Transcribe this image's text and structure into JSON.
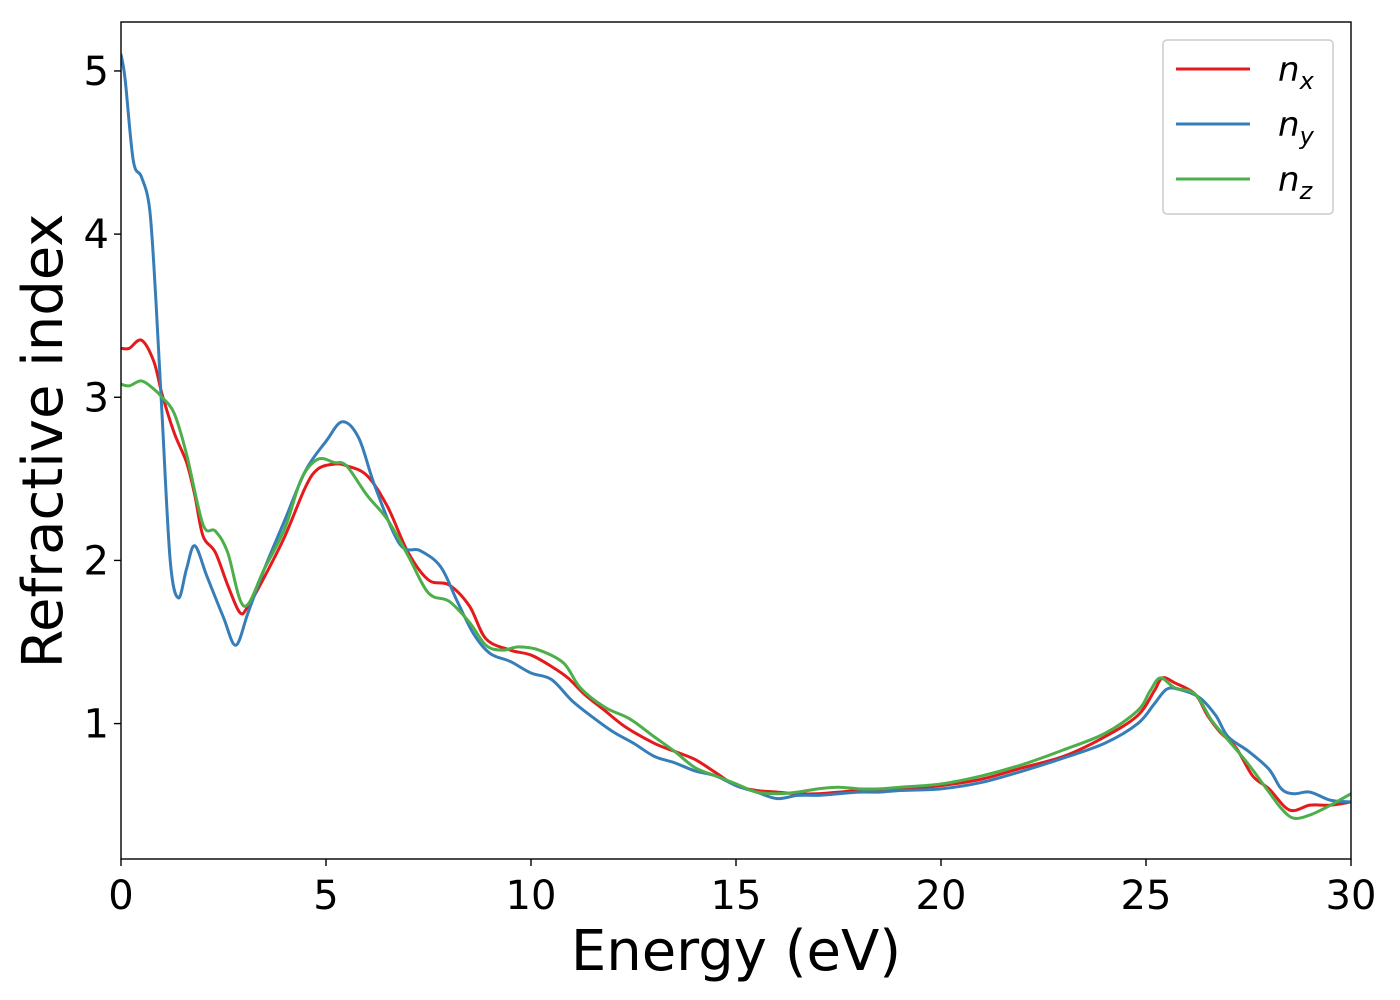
{
  "chart_data": {
    "type": "line",
    "xlabel": "Energy (eV)",
    "ylabel": "Refractive index",
    "xlim": [
      0,
      30
    ],
    "ylim": [
      0.17,
      5.3
    ],
    "xticks": [
      0,
      5,
      10,
      15,
      20,
      25,
      30
    ],
    "xtick_labels": [
      "0",
      "5",
      "10",
      "15",
      "20",
      "25",
      "30"
    ],
    "yticks": [
      1,
      2,
      3,
      4,
      5
    ],
    "ytick_labels": [
      "1",
      "2",
      "3",
      "4",
      "5"
    ],
    "grid": false,
    "legend_position": "top-right",
    "series": [
      {
        "name": "n",
        "subscript": "x",
        "color": "#e41a1c",
        "points": [
          [
            0,
            3.3
          ],
          [
            0.2,
            3.3
          ],
          [
            0.5,
            3.35
          ],
          [
            0.8,
            3.22
          ],
          [
            1.0,
            3.02
          ],
          [
            1.3,
            2.78
          ],
          [
            1.6,
            2.6
          ],
          [
            1.8,
            2.4
          ],
          [
            2.0,
            2.15
          ],
          [
            2.3,
            2.05
          ],
          [
            2.6,
            1.85
          ],
          [
            2.9,
            1.68
          ],
          [
            3.1,
            1.72
          ],
          [
            3.5,
            1.9
          ],
          [
            4.0,
            2.15
          ],
          [
            4.5,
            2.45
          ],
          [
            4.8,
            2.56
          ],
          [
            5.2,
            2.59
          ],
          [
            5.5,
            2.58
          ],
          [
            6.0,
            2.52
          ],
          [
            6.5,
            2.33
          ],
          [
            7.0,
            2.05
          ],
          [
            7.5,
            1.88
          ],
          [
            8.0,
            1.85
          ],
          [
            8.5,
            1.72
          ],
          [
            8.9,
            1.52
          ],
          [
            9.5,
            1.45
          ],
          [
            10.0,
            1.42
          ],
          [
            10.5,
            1.35
          ],
          [
            10.9,
            1.28
          ],
          [
            11.3,
            1.18
          ],
          [
            11.8,
            1.08
          ],
          [
            12.3,
            0.98
          ],
          [
            13.0,
            0.88
          ],
          [
            13.5,
            0.83
          ],
          [
            14.0,
            0.78
          ],
          [
            14.5,
            0.7
          ],
          [
            15.0,
            0.62
          ],
          [
            15.5,
            0.59
          ],
          [
            16.0,
            0.58
          ],
          [
            16.5,
            0.57
          ],
          [
            17.0,
            0.57
          ],
          [
            17.5,
            0.58
          ],
          [
            18.0,
            0.59
          ],
          [
            19.0,
            0.6
          ],
          [
            20.0,
            0.62
          ],
          [
            21.0,
            0.66
          ],
          [
            22.0,
            0.73
          ],
          [
            23.0,
            0.8
          ],
          [
            24.0,
            0.92
          ],
          [
            24.8,
            1.05
          ],
          [
            25.2,
            1.2
          ],
          [
            25.4,
            1.28
          ],
          [
            25.7,
            1.25
          ],
          [
            26.2,
            1.18
          ],
          [
            26.5,
            1.05
          ],
          [
            26.8,
            0.95
          ],
          [
            27.2,
            0.85
          ],
          [
            27.6,
            0.68
          ],
          [
            28.0,
            0.6
          ],
          [
            28.5,
            0.47
          ],
          [
            29.0,
            0.5
          ],
          [
            29.5,
            0.5
          ],
          [
            30.0,
            0.52
          ]
        ]
      },
      {
        "name": "n",
        "subscript": "y",
        "color": "#377eb8",
        "points": [
          [
            0,
            5.1
          ],
          [
            0.1,
            4.95
          ],
          [
            0.3,
            4.45
          ],
          [
            0.5,
            4.35
          ],
          [
            0.7,
            4.15
          ],
          [
            0.85,
            3.6
          ],
          [
            1.0,
            2.9
          ],
          [
            1.2,
            2.0
          ],
          [
            1.4,
            1.77
          ],
          [
            1.6,
            1.95
          ],
          [
            1.8,
            2.09
          ],
          [
            2.1,
            1.9
          ],
          [
            2.5,
            1.65
          ],
          [
            2.8,
            1.48
          ],
          [
            3.1,
            1.68
          ],
          [
            3.5,
            1.95
          ],
          [
            4.0,
            2.25
          ],
          [
            4.5,
            2.55
          ],
          [
            5.0,
            2.73
          ],
          [
            5.4,
            2.85
          ],
          [
            5.8,
            2.75
          ],
          [
            6.2,
            2.45
          ],
          [
            6.8,
            2.1
          ],
          [
            7.3,
            2.06
          ],
          [
            7.8,
            1.96
          ],
          [
            8.2,
            1.75
          ],
          [
            8.6,
            1.55
          ],
          [
            9.0,
            1.43
          ],
          [
            9.5,
            1.38
          ],
          [
            10.0,
            1.31
          ],
          [
            10.5,
            1.27
          ],
          [
            11.0,
            1.14
          ],
          [
            11.5,
            1.04
          ],
          [
            12.0,
            0.95
          ],
          [
            12.5,
            0.88
          ],
          [
            13.0,
            0.8
          ],
          [
            13.5,
            0.76
          ],
          [
            14.0,
            0.71
          ],
          [
            14.5,
            0.68
          ],
          [
            15.0,
            0.62
          ],
          [
            15.5,
            0.58
          ],
          [
            16.0,
            0.54
          ],
          [
            16.5,
            0.56
          ],
          [
            17.0,
            0.56
          ],
          [
            17.5,
            0.57
          ],
          [
            18.0,
            0.58
          ],
          [
            18.5,
            0.58
          ],
          [
            19.0,
            0.59
          ],
          [
            20.0,
            0.6
          ],
          [
            21.0,
            0.64
          ],
          [
            22.0,
            0.71
          ],
          [
            23.0,
            0.79
          ],
          [
            24.0,
            0.88
          ],
          [
            24.8,
            1.0
          ],
          [
            25.2,
            1.12
          ],
          [
            25.5,
            1.21
          ],
          [
            25.8,
            1.21
          ],
          [
            26.3,
            1.16
          ],
          [
            26.7,
            1.05
          ],
          [
            27.0,
            0.92
          ],
          [
            27.5,
            0.83
          ],
          [
            28.0,
            0.72
          ],
          [
            28.3,
            0.6
          ],
          [
            28.6,
            0.57
          ],
          [
            29.0,
            0.58
          ],
          [
            29.5,
            0.53
          ],
          [
            30.0,
            0.52
          ]
        ]
      },
      {
        "name": "n",
        "subscript": "z",
        "color": "#4daf4a",
        "points": [
          [
            0,
            3.08
          ],
          [
            0.2,
            3.07
          ],
          [
            0.5,
            3.1
          ],
          [
            0.8,
            3.05
          ],
          [
            1.0,
            3.0
          ],
          [
            1.3,
            2.9
          ],
          [
            1.6,
            2.65
          ],
          [
            2.0,
            2.22
          ],
          [
            2.3,
            2.18
          ],
          [
            2.6,
            2.05
          ],
          [
            3.0,
            1.72
          ],
          [
            3.5,
            1.95
          ],
          [
            4.0,
            2.2
          ],
          [
            4.4,
            2.5
          ],
          [
            4.8,
            2.62
          ],
          [
            5.2,
            2.6
          ],
          [
            5.5,
            2.58
          ],
          [
            6.0,
            2.4
          ],
          [
            6.5,
            2.25
          ],
          [
            7.0,
            2.03
          ],
          [
            7.5,
            1.8
          ],
          [
            8.0,
            1.75
          ],
          [
            8.5,
            1.62
          ],
          [
            8.9,
            1.48
          ],
          [
            9.3,
            1.45
          ],
          [
            9.7,
            1.47
          ],
          [
            10.2,
            1.45
          ],
          [
            10.8,
            1.37
          ],
          [
            11.2,
            1.22
          ],
          [
            11.8,
            1.1
          ],
          [
            12.4,
            1.03
          ],
          [
            13.0,
            0.92
          ],
          [
            13.5,
            0.83
          ],
          [
            14.0,
            0.73
          ],
          [
            14.5,
            0.68
          ],
          [
            15.0,
            0.63
          ],
          [
            15.5,
            0.58
          ],
          [
            16.0,
            0.57
          ],
          [
            16.5,
            0.58
          ],
          [
            17.0,
            0.6
          ],
          [
            17.5,
            0.61
          ],
          [
            18.0,
            0.6
          ],
          [
            18.5,
            0.6
          ],
          [
            19.0,
            0.61
          ],
          [
            20.0,
            0.63
          ],
          [
            21.0,
            0.68
          ],
          [
            22.0,
            0.75
          ],
          [
            23.0,
            0.84
          ],
          [
            24.0,
            0.94
          ],
          [
            24.8,
            1.08
          ],
          [
            25.1,
            1.2
          ],
          [
            25.35,
            1.28
          ],
          [
            25.7,
            1.22
          ],
          [
            26.2,
            1.18
          ],
          [
            26.6,
            1.02
          ],
          [
            27.0,
            0.9
          ],
          [
            27.5,
            0.75
          ],
          [
            28.0,
            0.58
          ],
          [
            28.3,
            0.48
          ],
          [
            28.6,
            0.42
          ],
          [
            29.0,
            0.44
          ],
          [
            29.5,
            0.5
          ],
          [
            30.0,
            0.57
          ]
        ]
      }
    ]
  }
}
